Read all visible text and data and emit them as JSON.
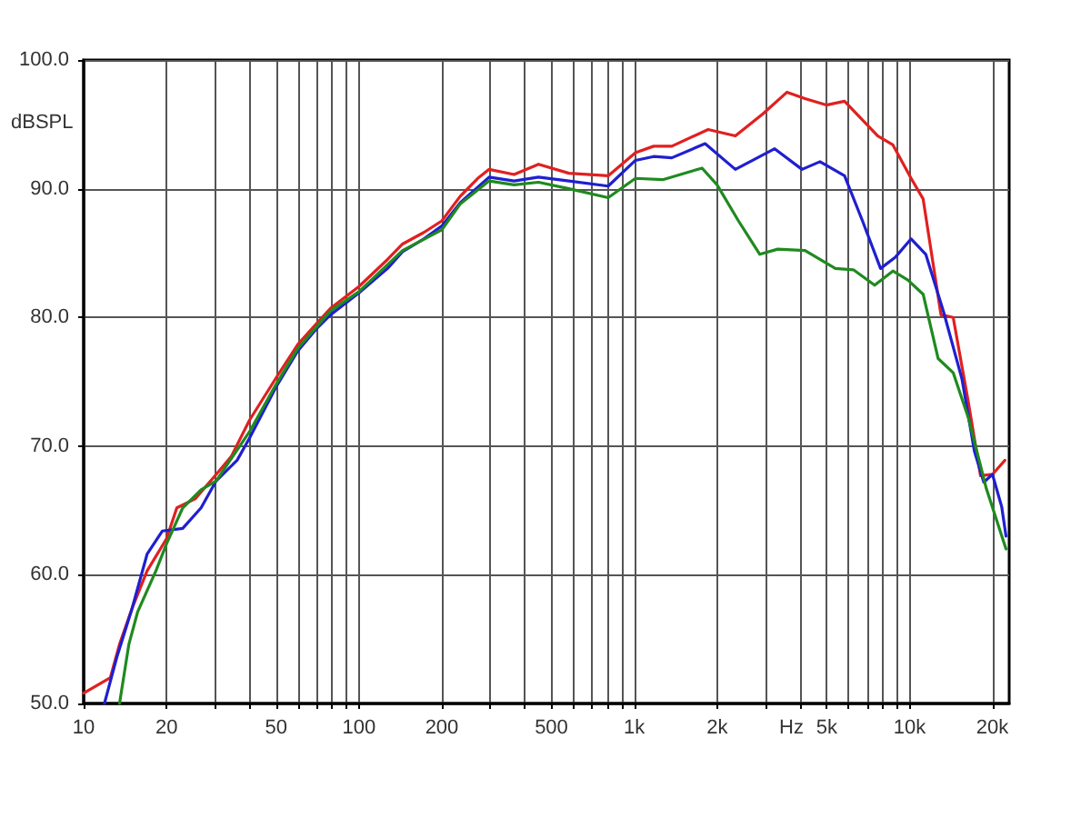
{
  "chart_data": {
    "type": "line",
    "xlabel": "Hz",
    "ylabel": "dBSPL",
    "log": "x",
    "grid": true,
    "xlim": [
      10,
      23000
    ],
    "ylim": [
      50,
      100
    ],
    "xticks": [
      10,
      20,
      {
        "value": 30,
        "label": null
      },
      {
        "value": 40,
        "label": null
      },
      50,
      {
        "value": 60,
        "label": null
      },
      {
        "value": 70,
        "label": null
      },
      {
        "value": 80,
        "label": null
      },
      {
        "value": 90,
        "label": null
      },
      100,
      200,
      {
        "value": 300,
        "label": null
      },
      {
        "value": 400,
        "label": null
      },
      500,
      {
        "value": 600,
        "label": null
      },
      {
        "value": 700,
        "label": null
      },
      {
        "value": 800,
        "label": null
      },
      {
        "value": 900,
        "label": null
      },
      {
        "value": 1000,
        "label": "1k"
      },
      {
        "value": 2000,
        "label": "2k"
      },
      {
        "value": 3000,
        "label": null
      },
      {
        "value": 4000,
        "label": null
      },
      {
        "value": 5000,
        "label": "5k"
      },
      {
        "value": 6000,
        "label": null
      },
      {
        "value": 7000,
        "label": null
      },
      {
        "value": 8000,
        "label": null
      },
      {
        "value": 9000,
        "label": null
      },
      {
        "value": 10000,
        "label": "10k"
      },
      {
        "value": 20000,
        "label": "20k"
      }
    ],
    "yticks": [
      {
        "value": 50,
        "label": "50.0"
      },
      {
        "value": 60,
        "label": "60.0"
      },
      {
        "value": 70,
        "label": "70.0"
      },
      {
        "value": 80,
        "label": "80.0"
      },
      {
        "value": 90,
        "label": "90.0"
      },
      {
        "value": 100,
        "label": "100.0"
      }
    ],
    "series": [
      {
        "color": "#e02020",
        "x": [
          10,
          12.5,
          13.5,
          15,
          17,
          20,
          21.8,
          25.4,
          30.3,
          34.4,
          40,
          50,
          60,
          70,
          78.8,
          100,
          127,
          144,
          172,
          200,
          233,
          270,
          297,
          366,
          449,
          579,
          804,
          1010,
          1176,
          1369,
          1855,
          2329,
          2926,
          3588,
          4170,
          4984,
          5804,
          7666,
          8700,
          10130,
          11200,
          13000,
          14400,
          16350,
          18100,
          20000,
          22200
        ],
        "values": [
          50.8,
          52.0,
          54.6,
          57.4,
          60.3,
          62.8,
          65.2,
          65.9,
          67.8,
          69.2,
          72.0,
          75.3,
          77.9,
          79.5,
          80.7,
          82.4,
          84.5,
          85.7,
          86.6,
          87.5,
          89.4,
          90.8,
          91.5,
          91.1,
          91.9,
          91.2,
          91.0,
          92.8,
          93.3,
          93.3,
          94.6,
          94.1,
          95.8,
          97.5,
          97.0,
          96.5,
          96.8,
          94.1,
          93.4,
          90.8,
          89.2,
          80.2,
          80.0,
          73.4,
          67.7,
          67.8,
          68.9
        ]
      },
      {
        "color": "#1f1fd0",
        "x": [
          11.9,
          13.2,
          15,
          17,
          19.3,
          22.9,
          26.7,
          30.3,
          36.1,
          40,
          50,
          60,
          70,
          78.8,
          100,
          127,
          144,
          172,
          200,
          233,
          297,
          366,
          449,
          579,
          804,
          1010,
          1176,
          1369,
          1808,
          2329,
          3236,
          4068,
          4727,
          5804,
          6744,
          7844,
          8900,
          10130,
          11450,
          13300,
          15500,
          17200,
          18600,
          20000,
          21600,
          22400
        ],
        "values": [
          50,
          53.6,
          57.4,
          61.6,
          63.4,
          63.6,
          65.2,
          67.3,
          68.9,
          70.6,
          74.6,
          77.4,
          79.1,
          80.2,
          81.9,
          83.8,
          85.1,
          86.1,
          87.1,
          88.9,
          90.9,
          90.6,
          90.9,
          90.6,
          90.2,
          92.2,
          92.5,
          92.4,
          93.5,
          91.5,
          93.1,
          91.5,
          92.1,
          91.0,
          87.5,
          83.8,
          84.7,
          86.1,
          84.9,
          80.4,
          75.2,
          69.6,
          67.2,
          67.8,
          65.3,
          63.0
        ]
      },
      {
        "color": "#1f8a1f",
        "x": [
          13.5,
          14.6,
          15.7,
          18.3,
          20,
          22.9,
          26.7,
          30.3,
          36.1,
          40,
          50,
          60,
          78.8,
          100,
          144,
          200,
          233,
          297,
          366,
          449,
          579,
          804,
          1010,
          1269,
          1763,
          1999,
          2390,
          2857,
          3320,
          4170,
          5375,
          6250,
          7466,
          8700,
          9860,
          11200,
          12700,
          14400,
          16350,
          19000,
          22400
        ],
        "values": [
          50,
          54.6,
          57.1,
          60.3,
          62.4,
          65.2,
          66.6,
          67.3,
          69.7,
          71.1,
          74.8,
          77.6,
          80.5,
          82.0,
          85.2,
          86.8,
          88.8,
          90.6,
          90.3,
          90.5,
          90.0,
          89.3,
          90.8,
          90.7,
          91.6,
          90.3,
          87.5,
          84.9,
          85.3,
          85.2,
          83.8,
          83.7,
          82.5,
          83.6,
          82.9,
          81.8,
          76.8,
          75.7,
          72.2,
          66.7,
          62.0
        ]
      }
    ]
  }
}
